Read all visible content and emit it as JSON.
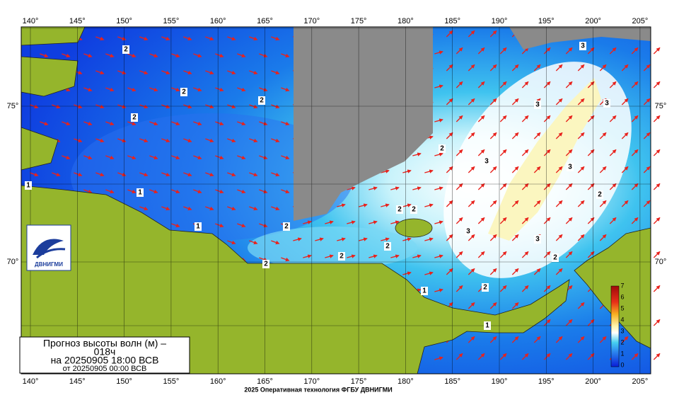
{
  "map": {
    "lon_labels": [
      "140°",
      "145°",
      "150°",
      "155°",
      "160°",
      "165°",
      "170°",
      "175°",
      "180°",
      "185°",
      "190°",
      "195°",
      "200°",
      "205°"
    ],
    "lat_labels": [
      "75°",
      "70°"
    ],
    "contour_labels": [
      2,
      2,
      2,
      2,
      1,
      1,
      1,
      2,
      2,
      2,
      2,
      2,
      2,
      3,
      3,
      3,
      2,
      3,
      3,
      2,
      3,
      3,
      2,
      2,
      1,
      1
    ],
    "colorbar_ticks": [
      7,
      6,
      5,
      4,
      3,
      2,
      1,
      0
    ]
  },
  "caption": {
    "title": [
      "Прогноз высоты волн (м) –",
      "018ч"
    ],
    "issued": "на 20250905 18:00 ВСВ",
    "base": "от 20250905 00:00 ВСВ"
  },
  "logo": "ДВНИГМИ",
  "footer": "2025 Оперативная технология ФГБУ ДВНИГМИ"
}
